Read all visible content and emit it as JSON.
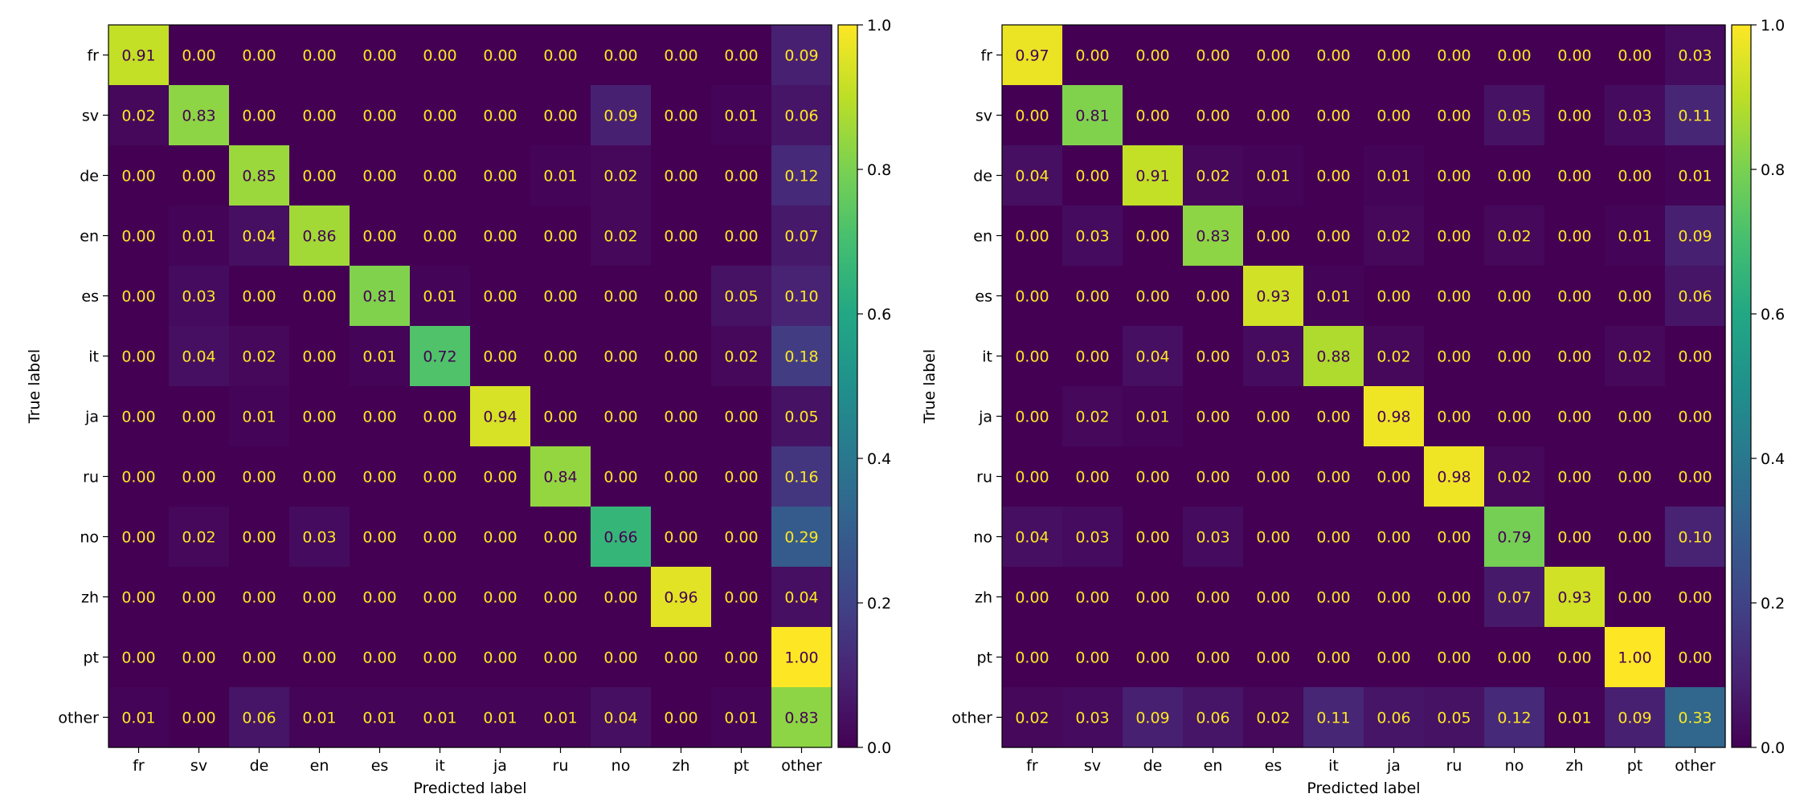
{
  "chart_data": [
    {
      "type": "heatmap",
      "title": "",
      "xlabel": "Predicted label",
      "ylabel": "True label",
      "categories": [
        "fr",
        "sv",
        "de",
        "en",
        "es",
        "it",
        "ja",
        "ru",
        "no",
        "zh",
        "pt",
        "other"
      ],
      "values": [
        [
          0.91,
          0.0,
          0.0,
          0.0,
          0.0,
          0.0,
          0.0,
          0.0,
          0.0,
          0.0,
          0.0,
          0.09
        ],
        [
          0.02,
          0.83,
          0.0,
          0.0,
          0.0,
          0.0,
          0.0,
          0.0,
          0.09,
          0.0,
          0.01,
          0.06
        ],
        [
          0.0,
          0.0,
          0.85,
          0.0,
          0.0,
          0.0,
          0.0,
          0.01,
          0.02,
          0.0,
          0.0,
          0.12
        ],
        [
          0.0,
          0.01,
          0.04,
          0.86,
          0.0,
          0.0,
          0.0,
          0.0,
          0.02,
          0.0,
          0.0,
          0.07
        ],
        [
          0.0,
          0.03,
          0.0,
          0.0,
          0.81,
          0.01,
          0.0,
          0.0,
          0.0,
          0.0,
          0.05,
          0.1
        ],
        [
          0.0,
          0.04,
          0.02,
          0.0,
          0.01,
          0.72,
          0.0,
          0.0,
          0.0,
          0.0,
          0.02,
          0.18
        ],
        [
          0.0,
          0.0,
          0.01,
          0.0,
          0.0,
          0.0,
          0.94,
          0.0,
          0.0,
          0.0,
          0.0,
          0.05
        ],
        [
          0.0,
          0.0,
          0.0,
          0.0,
          0.0,
          0.0,
          0.0,
          0.84,
          0.0,
          0.0,
          0.0,
          0.16
        ],
        [
          0.0,
          0.02,
          0.0,
          0.03,
          0.0,
          0.0,
          0.0,
          0.0,
          0.66,
          0.0,
          0.0,
          0.29
        ],
        [
          0.0,
          0.0,
          0.0,
          0.0,
          0.0,
          0.0,
          0.0,
          0.0,
          0.0,
          0.96,
          0.0,
          0.04
        ],
        [
          0.0,
          0.0,
          0.0,
          0.0,
          0.0,
          0.0,
          0.0,
          0.0,
          0.0,
          0.0,
          0.0,
          1.0
        ],
        [
          0.01,
          0.0,
          0.06,
          0.01,
          0.01,
          0.01,
          0.01,
          0.01,
          0.04,
          0.0,
          0.01,
          0.83
        ]
      ],
      "colorbar": {
        "range": [
          0.0,
          1.0
        ],
        "ticks": [
          "0.0",
          "0.2",
          "0.4",
          "0.6",
          "0.8",
          "1.0"
        ],
        "colormap": "viridis"
      }
    },
    {
      "type": "heatmap",
      "title": "",
      "xlabel": "Predicted label",
      "ylabel": "True label",
      "categories": [
        "fr",
        "sv",
        "de",
        "en",
        "es",
        "it",
        "ja",
        "ru",
        "no",
        "zh",
        "pt",
        "other"
      ],
      "values": [
        [
          0.97,
          0.0,
          0.0,
          0.0,
          0.0,
          0.0,
          0.0,
          0.0,
          0.0,
          0.0,
          0.0,
          0.03
        ],
        [
          0.0,
          0.81,
          0.0,
          0.0,
          0.0,
          0.0,
          0.0,
          0.0,
          0.05,
          0.0,
          0.03,
          0.11
        ],
        [
          0.04,
          0.0,
          0.91,
          0.02,
          0.01,
          0.0,
          0.01,
          0.0,
          0.0,
          0.0,
          0.0,
          0.01
        ],
        [
          0.0,
          0.03,
          0.0,
          0.83,
          0.0,
          0.0,
          0.02,
          0.0,
          0.02,
          0.0,
          0.01,
          0.09
        ],
        [
          0.0,
          0.0,
          0.0,
          0.0,
          0.93,
          0.01,
          0.0,
          0.0,
          0.0,
          0.0,
          0.0,
          0.06
        ],
        [
          0.0,
          0.0,
          0.04,
          0.0,
          0.03,
          0.88,
          0.02,
          0.0,
          0.0,
          0.0,
          0.02,
          0.0
        ],
        [
          0.0,
          0.02,
          0.01,
          0.0,
          0.0,
          0.0,
          0.98,
          0.0,
          0.0,
          0.0,
          0.0,
          0.0
        ],
        [
          0.0,
          0.0,
          0.0,
          0.0,
          0.0,
          0.0,
          0.0,
          0.98,
          0.02,
          0.0,
          0.0,
          0.0
        ],
        [
          0.04,
          0.03,
          0.0,
          0.03,
          0.0,
          0.0,
          0.0,
          0.0,
          0.79,
          0.0,
          0.0,
          0.1
        ],
        [
          0.0,
          0.0,
          0.0,
          0.0,
          0.0,
          0.0,
          0.0,
          0.0,
          0.07,
          0.93,
          0.0,
          0.0
        ],
        [
          0.0,
          0.0,
          0.0,
          0.0,
          0.0,
          0.0,
          0.0,
          0.0,
          0.0,
          0.0,
          1.0,
          0.0
        ],
        [
          0.02,
          0.03,
          0.09,
          0.06,
          0.02,
          0.11,
          0.06,
          0.05,
          0.12,
          0.01,
          0.09,
          0.33
        ]
      ],
      "colorbar": {
        "range": [
          0.0,
          1.0
        ],
        "ticks": [
          "0.0",
          "0.2",
          "0.4",
          "0.6",
          "0.8",
          "1.0"
        ],
        "colormap": "viridis"
      }
    }
  ]
}
